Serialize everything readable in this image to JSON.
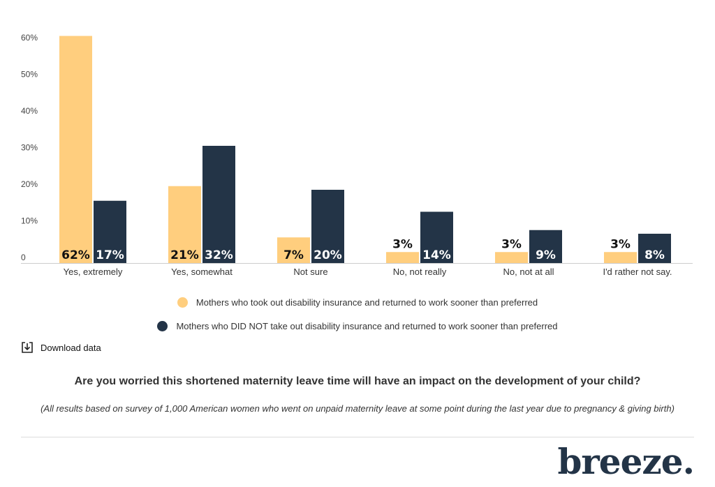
{
  "chart_data": {
    "type": "bar",
    "categories": [
      "Yes, extremely",
      "Yes, somewhat",
      "Not sure",
      "No, not really",
      "No, not at all",
      "I'd rather not say."
    ],
    "series": [
      {
        "name": "Mothers who took out disability insurance and returned to work sooner than preferred",
        "color": "#FFCE7E",
        "values": [
          62,
          21,
          7,
          3,
          3,
          3
        ],
        "labels": [
          "62%",
          "21%",
          "7%",
          "3%",
          "3%",
          "3%"
        ]
      },
      {
        "name": "Mothers who DID NOT take out disability insurance and returned to work sooner than preferred",
        "color": "#233447",
        "values": [
          17,
          32,
          20,
          14,
          9,
          8
        ],
        "labels": [
          "17%",
          "32%",
          "20%",
          "14%",
          "9%",
          "8%"
        ]
      }
    ],
    "y_ticks": [
      "0",
      "10%",
      "20%",
      "30%",
      "40%",
      "50%",
      "60%"
    ],
    "ylim": [
      0,
      60
    ],
    "grid": false,
    "legend_position": "bottom"
  },
  "download_label": "Download data",
  "question": "Are you worried this shortened maternity leave time will have an impact on the development of your child?",
  "note": "(All results based on survey of 1,000 American women who went on unpaid maternity leave at some point during the last year due to pregnancy & giving birth)",
  "logo": "breeze."
}
